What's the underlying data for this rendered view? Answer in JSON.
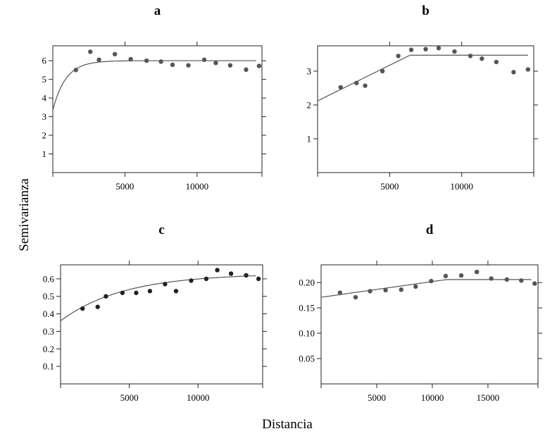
{
  "figure": {
    "ylabel": "Semivarianza",
    "xlabel": "Distancia",
    "colors": {
      "points": "#555555",
      "points_dark": "#222222",
      "line": "#555555",
      "axis": "#222222"
    }
  },
  "chart_data": [
    {
      "type": "scatter",
      "title": "a",
      "xlim": [
        0,
        14500
      ],
      "ylim": [
        0,
        6.8
      ],
      "xticks": [
        5000,
        10000
      ],
      "yticks": [
        1,
        2,
        3,
        4,
        5,
        6
      ],
      "points": [
        [
          1600,
          5.5
        ],
        [
          2600,
          6.48
        ],
        [
          3200,
          6.05
        ],
        [
          4300,
          6.35
        ],
        [
          5400,
          6.08
        ],
        [
          6500,
          6.0
        ],
        [
          7500,
          5.95
        ],
        [
          8300,
          5.78
        ],
        [
          9400,
          5.75
        ],
        [
          10500,
          6.05
        ],
        [
          11300,
          5.88
        ],
        [
          12300,
          5.75
        ],
        [
          13400,
          5.52
        ],
        [
          14300,
          5.72
        ]
      ],
      "model": {
        "kind": "exponential",
        "nugget": 3.35,
        "sill": 6.0,
        "range": 900,
        "x_end": 14100
      }
    },
    {
      "type": "scatter",
      "title": "b",
      "xlim": [
        0,
        15000
      ],
      "ylim": [
        0,
        3.75
      ],
      "xticks": [
        5000,
        10000
      ],
      "yticks": [
        1,
        2,
        3
      ],
      "points": [
        [
          1600,
          2.52
        ],
        [
          2700,
          2.65
        ],
        [
          3300,
          2.57
        ],
        [
          4500,
          3.0
        ],
        [
          5600,
          3.45
        ],
        [
          6500,
          3.63
        ],
        [
          7500,
          3.65
        ],
        [
          8400,
          3.68
        ],
        [
          9500,
          3.58
        ],
        [
          10600,
          3.45
        ],
        [
          11400,
          3.37
        ],
        [
          12400,
          3.27
        ],
        [
          13600,
          2.97
        ],
        [
          14600,
          3.05
        ]
      ],
      "model": {
        "kind": "linear-sill",
        "nugget": 2.12,
        "sill": 3.47,
        "range": 6400,
        "x_end": 14600
      }
    },
    {
      "type": "scatter",
      "title": "c",
      "xlim": [
        0,
        14700
      ],
      "ylim": [
        0,
        0.68
      ],
      "xticks": [
        5000,
        10000
      ],
      "yticks": [
        0.1,
        0.2,
        0.3,
        0.4,
        0.5,
        0.6
      ],
      "points": [
        [
          1600,
          0.43
        ],
        [
          2700,
          0.44
        ],
        [
          3300,
          0.5
        ],
        [
          4500,
          0.52
        ],
        [
          5500,
          0.52
        ],
        [
          6500,
          0.53
        ],
        [
          7600,
          0.57
        ],
        [
          8400,
          0.53
        ],
        [
          9500,
          0.59
        ],
        [
          10600,
          0.6
        ],
        [
          11400,
          0.65
        ],
        [
          12400,
          0.63
        ],
        [
          13500,
          0.62
        ],
        [
          14400,
          0.6
        ]
      ],
      "model": {
        "kind": "exponential",
        "nugget": 0.36,
        "sill": 0.63,
        "range": 4600,
        "x_end": 14200
      }
    },
    {
      "type": "scatter",
      "title": "d",
      "xlim": [
        0,
        19500
      ],
      "ylim": [
        0,
        0.235
      ],
      "xticks": [
        5000,
        10000,
        15000
      ],
      "yticks": [
        0.05,
        0.1,
        0.15,
        0.2
      ],
      "ytick_labels": [
        "0.05",
        "0.10",
        "0.15",
        "0.20"
      ],
      "points": [
        [
          1700,
          0.18
        ],
        [
          3100,
          0.171
        ],
        [
          4400,
          0.183
        ],
        [
          5800,
          0.185
        ],
        [
          7200,
          0.186
        ],
        [
          8500,
          0.192
        ],
        [
          9900,
          0.203
        ],
        [
          11200,
          0.213
        ],
        [
          12600,
          0.214
        ],
        [
          14000,
          0.221
        ],
        [
          15300,
          0.208
        ],
        [
          16700,
          0.206
        ],
        [
          18000,
          0.204
        ],
        [
          19200,
          0.198
        ]
      ],
      "model": {
        "kind": "linear-sill",
        "nugget": 0.171,
        "sill": 0.206,
        "range": 11300,
        "x_end": 18900
      }
    }
  ]
}
